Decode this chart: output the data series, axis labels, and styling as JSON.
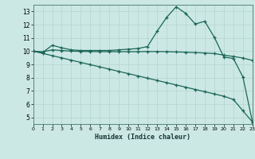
{
  "xlabel": "Humidex (Indice chaleur)",
  "background_color": "#cce8e4",
  "grid_color": "#b8d8d2",
  "line_color": "#1a6655",
  "xlim": [
    0,
    23
  ],
  "ylim": [
    4.5,
    13.5
  ],
  "xticks": [
    0,
    1,
    2,
    3,
    4,
    5,
    6,
    7,
    8,
    9,
    10,
    11,
    12,
    13,
    14,
    15,
    16,
    17,
    18,
    19,
    20,
    21,
    22,
    23
  ],
  "yticks": [
    5,
    6,
    7,
    8,
    9,
    10,
    11,
    12,
    13
  ],
  "line1_x": [
    0,
    1,
    2,
    3,
    4,
    5,
    6,
    7,
    8,
    9,
    10,
    11,
    12,
    13,
    14,
    15,
    16,
    17,
    18,
    19,
    20,
    21,
    22,
    23
  ],
  "line1_y": [
    10.0,
    9.9,
    10.45,
    10.25,
    10.1,
    10.05,
    10.05,
    10.05,
    10.05,
    10.1,
    10.15,
    10.2,
    10.35,
    11.5,
    12.55,
    13.35,
    12.85,
    12.05,
    12.25,
    11.05,
    9.55,
    9.45,
    8.05,
    4.65
  ],
  "line2_x": [
    0,
    1,
    2,
    3,
    4,
    5,
    6,
    7,
    8,
    9,
    10,
    11,
    12,
    13,
    14,
    15,
    16,
    17,
    18,
    19,
    20,
    21,
    22,
    23
  ],
  "line2_y": [
    10.0,
    9.95,
    10.1,
    10.05,
    10.0,
    9.98,
    9.97,
    9.96,
    9.96,
    9.96,
    9.96,
    9.96,
    9.97,
    9.97,
    9.96,
    9.94,
    9.92,
    9.89,
    9.86,
    9.82,
    9.7,
    9.6,
    9.48,
    9.3
  ],
  "line3_x": [
    0,
    1,
    2,
    3,
    4,
    5,
    6,
    7,
    8,
    9,
    10,
    11,
    12,
    13,
    14,
    15,
    16,
    17,
    18,
    19,
    20,
    21,
    22,
    23
  ],
  "line3_y": [
    10.0,
    9.83,
    9.66,
    9.49,
    9.32,
    9.15,
    8.98,
    8.81,
    8.64,
    8.47,
    8.3,
    8.13,
    7.96,
    7.79,
    7.62,
    7.45,
    7.28,
    7.11,
    6.94,
    6.77,
    6.6,
    6.35,
    5.5,
    4.65
  ]
}
